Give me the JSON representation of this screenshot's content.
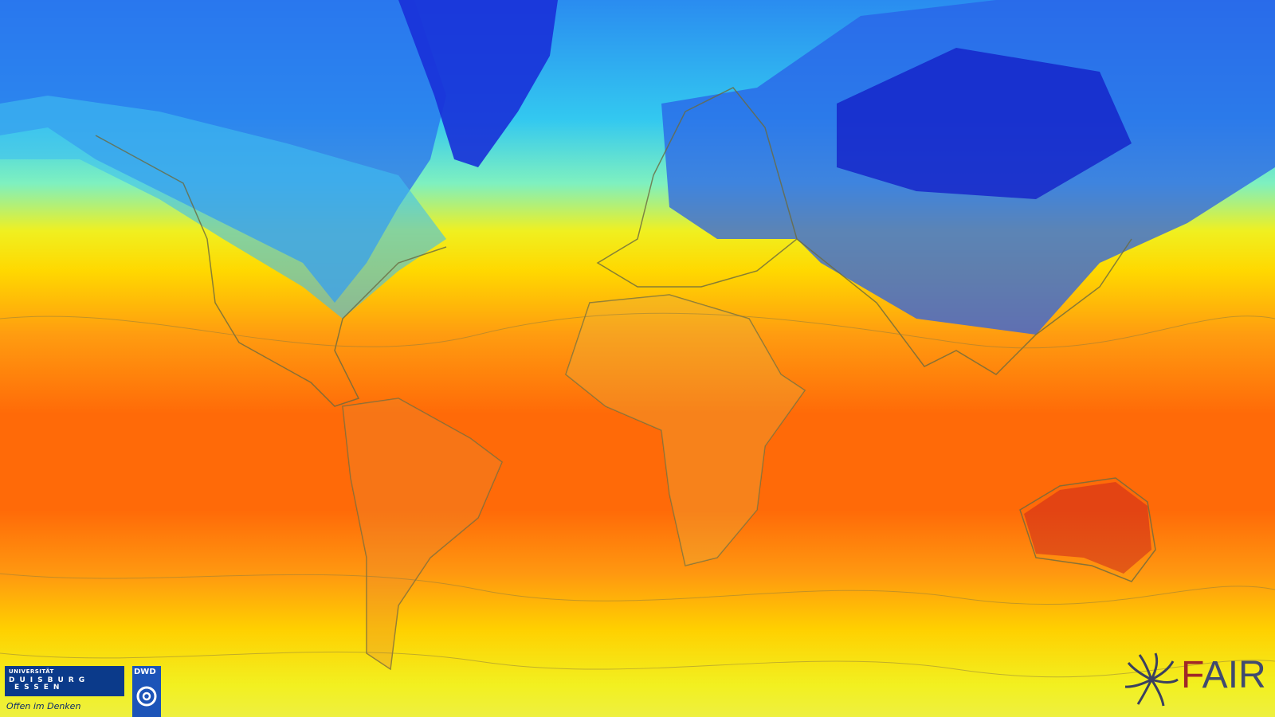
{
  "logos": {
    "university": {
      "line1": "UNIVERSITÄT",
      "line2": "DUISBURG",
      "line3": "ESSEN",
      "tagline": "Offen im Denken"
    },
    "dwd": {
      "text": "DWD"
    },
    "fair": {
      "first": "F",
      "rest": "AIR"
    }
  },
  "map": {
    "projection": "mercator",
    "variable": "temperature",
    "colors": {
      "cold": "#1a2ee0",
      "cool": "#33c8f0",
      "mild": "#f0f020",
      "warm": "#ff9c10",
      "hot": "#ff5a08",
      "hottest": "#c81e1e"
    }
  }
}
